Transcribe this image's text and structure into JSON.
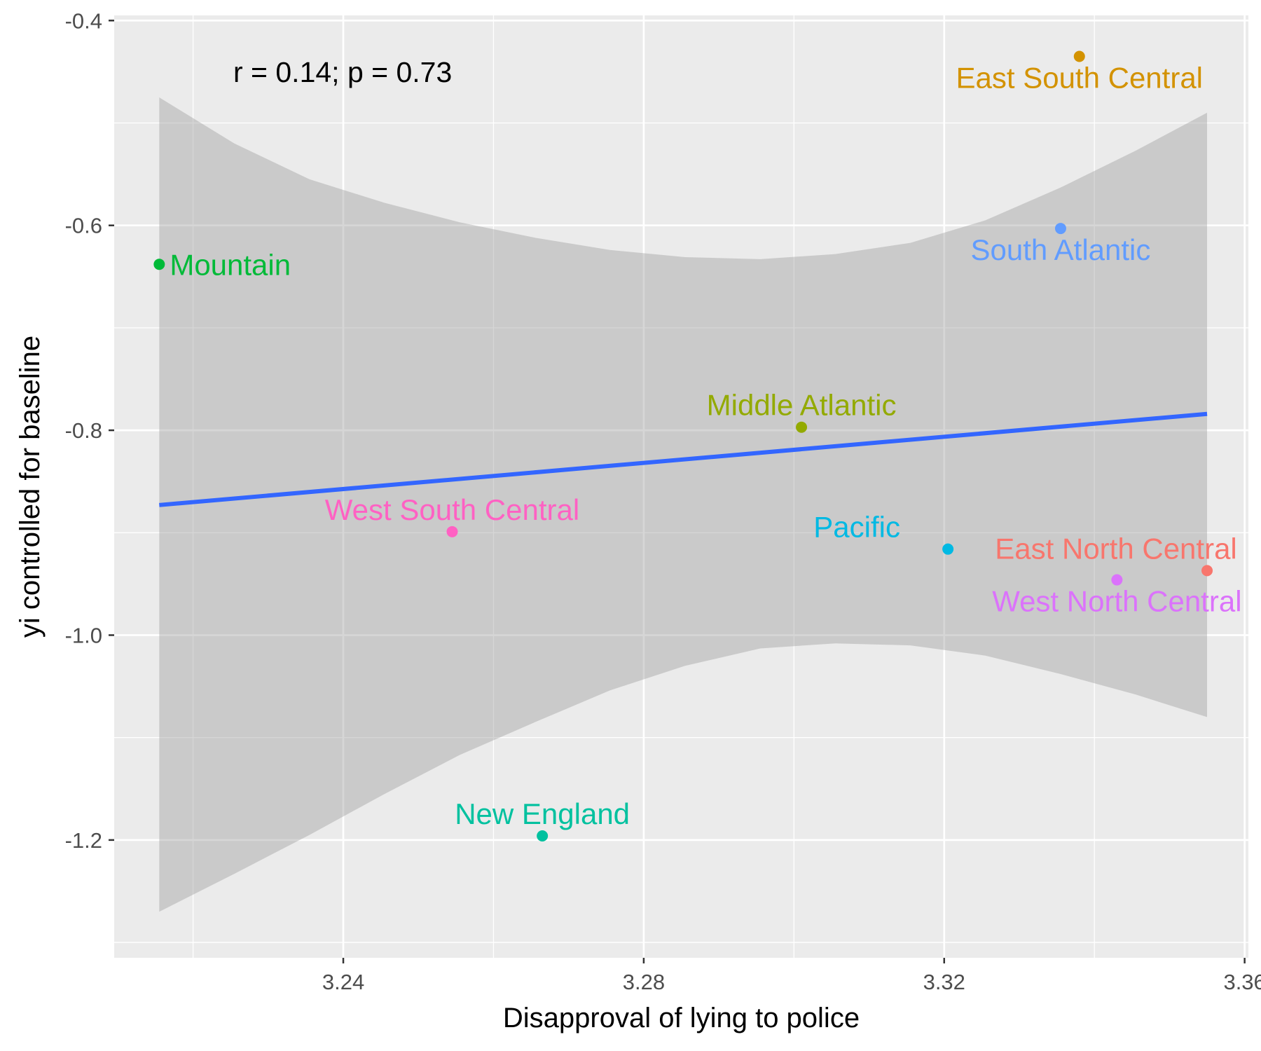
{
  "chart_data": {
    "type": "scatter",
    "title": "",
    "xlabel": "Disapproval of lying to police",
    "ylabel": "yi controlled for baseline",
    "annotation": "r = 0.14; p = 0.73",
    "xlim": [
      3.2095,
      3.3605
    ],
    "ylim": [
      -1.315,
      -0.395
    ],
    "x_ticks": [
      3.24,
      3.28,
      3.32,
      3.36
    ],
    "x_tick_labels": [
      "3.24",
      "3.28",
      "3.32",
      "3.36"
    ],
    "y_ticks": [
      -1.2,
      -1.0,
      -0.8,
      -0.6,
      -0.4
    ],
    "y_tick_labels": [
      "-1.2",
      "-1.0",
      "-0.8",
      "-0.6",
      "-0.4"
    ],
    "grid": true,
    "background": "#ebebeb",
    "points": [
      {
        "label": "East North Central",
        "x": 3.355,
        "y": -0.937,
        "color": "#F8766D",
        "label_pos": "top-left"
      },
      {
        "label": "East South Central",
        "x": 3.338,
        "y": -0.435,
        "color": "#D39200",
        "label_pos": "bottom"
      },
      {
        "label": "Middle Atlantic",
        "x": 3.301,
        "y": -0.797,
        "color": "#93AA00",
        "label_pos": "top"
      },
      {
        "label": "Mountain",
        "x": 3.2155,
        "y": -0.638,
        "color": "#00BA38",
        "label_pos": "right"
      },
      {
        "label": "New England",
        "x": 3.2665,
        "y": -1.196,
        "color": "#00C19F",
        "label_pos": "top"
      },
      {
        "label": "Pacific",
        "x": 3.3205,
        "y": -0.916,
        "color": "#00B9E3",
        "label_pos": "top-left"
      },
      {
        "label": "South Atlantic",
        "x": 3.3355,
        "y": -0.603,
        "color": "#619CFF",
        "label_pos": "bottom"
      },
      {
        "label": "West North Central",
        "x": 3.343,
        "y": -0.946,
        "color": "#DB72FB",
        "label_pos": "bottom"
      },
      {
        "label": "West South Central",
        "x": 3.2545,
        "y": -0.899,
        "color": "#FF61C3",
        "label_pos": "top"
      }
    ],
    "fit_line": {
      "color": "#3366FF",
      "x": [
        3.2155,
        3.355
      ],
      "y": [
        -0.873,
        -0.784
      ]
    },
    "confidence_band": {
      "color": "#999999",
      "x": [
        3.2155,
        3.2255,
        3.2355,
        3.2455,
        3.2555,
        3.2655,
        3.2755,
        3.2855,
        3.2955,
        3.3055,
        3.3155,
        3.3255,
        3.3355,
        3.3455,
        3.355
      ],
      "upper": [
        -0.475,
        -0.52,
        -0.555,
        -0.578,
        -0.597,
        -0.612,
        -0.624,
        -0.631,
        -0.633,
        -0.628,
        -0.617,
        -0.595,
        -0.563,
        -0.527,
        -0.49
      ],
      "lower": [
        -1.27,
        -1.233,
        -1.195,
        -1.155,
        -1.117,
        -1.085,
        -1.054,
        -1.03,
        -1.013,
        -1.008,
        -1.01,
        -1.02,
        -1.038,
        -1.058,
        -1.08
      ]
    }
  }
}
